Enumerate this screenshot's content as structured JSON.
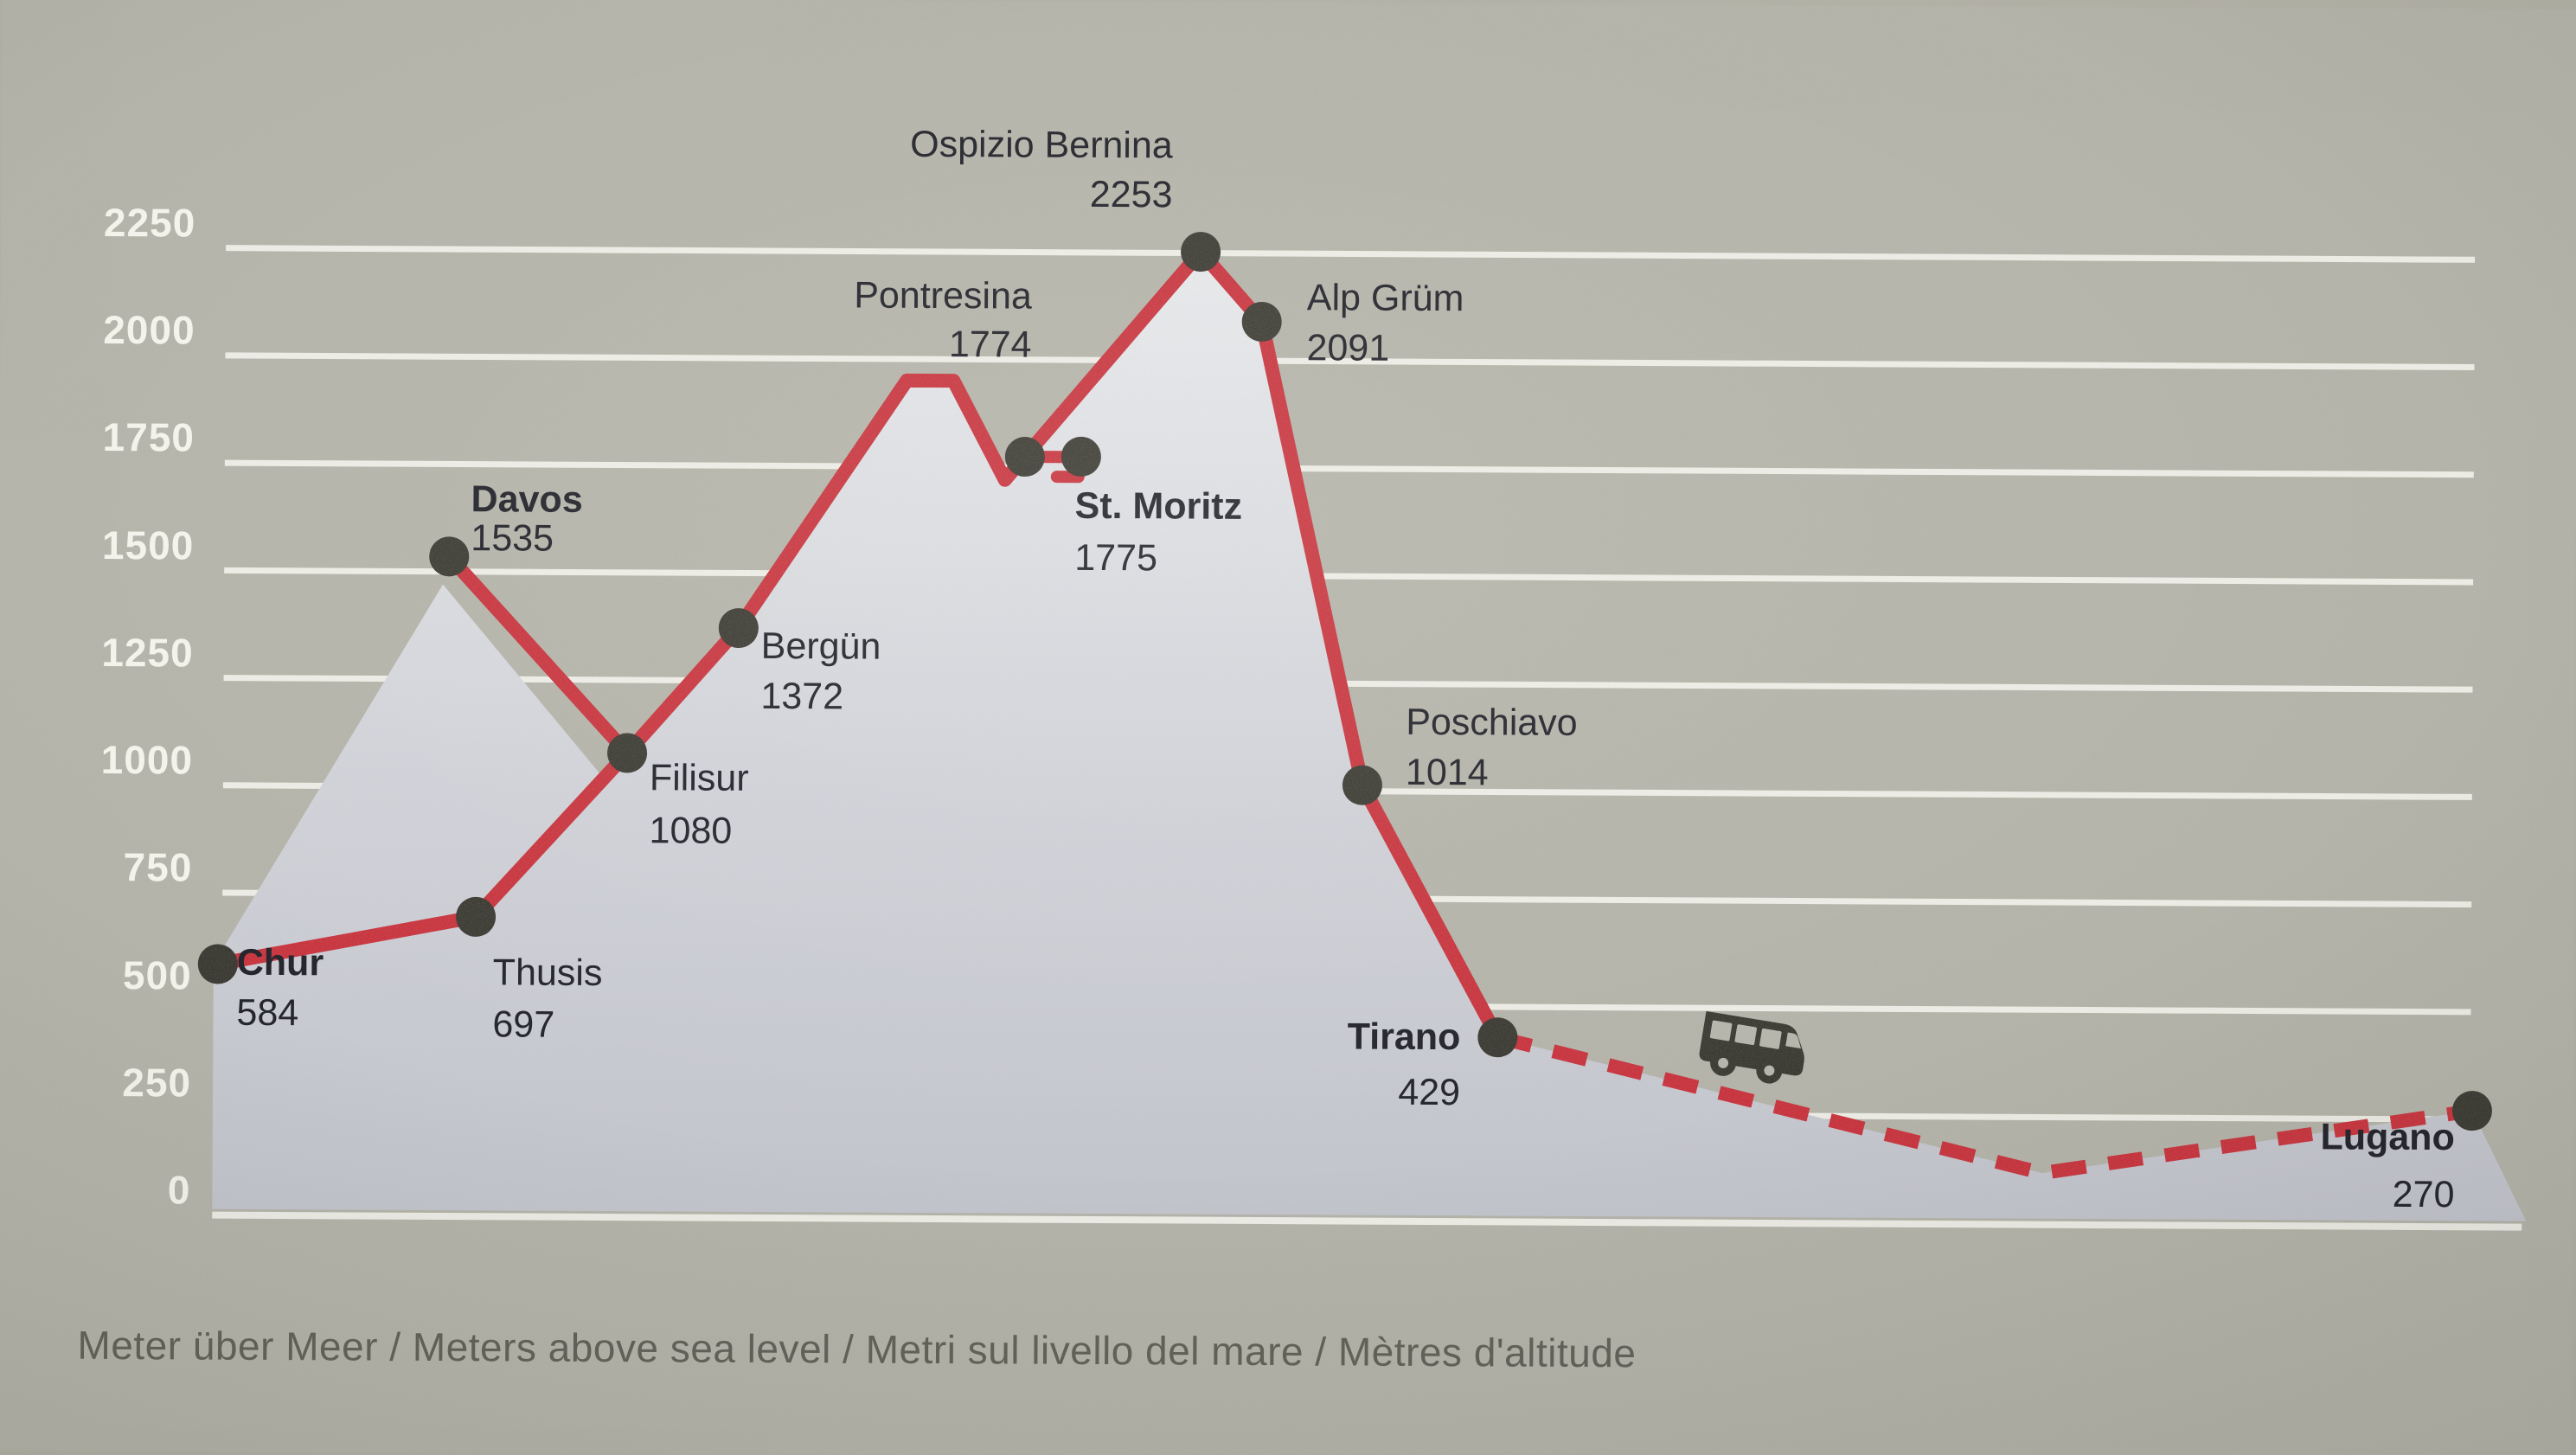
{
  "colors": {
    "background": "#b2b1a6",
    "line_red": "#c9202c",
    "dot_black": "#28271f",
    "grid_white": "#f3f3ec",
    "fill_top": "#ecedf1",
    "fill_bottom": "#c2c4ce",
    "tick_text": "#f3f3ec",
    "station_text": "#26262e",
    "caption_text": "#63635a"
  },
  "icons": {
    "transfer": "bus-icon"
  },
  "chart_data": {
    "type": "line",
    "title": "",
    "ylabel": "Meter über Meer / Meters above sea level / Metri sul livello del mare / Mètres d'altitude",
    "ylim": [
      0,
      2250
    ],
    "y_ticks": [
      0,
      250,
      500,
      750,
      1000,
      1250,
      1500,
      1750,
      2000,
      2250
    ],
    "grid": "horizontal-white-lines",
    "legend": "none",
    "stations": [
      {
        "name": "Chur",
        "elevation": 584,
        "emphasis": true,
        "x": 255
      },
      {
        "name": "Thusis",
        "elevation": 697,
        "emphasis": false,
        "x": 553
      },
      {
        "name": "Davos",
        "elevation": 1535,
        "emphasis": true,
        "x": 520
      },
      {
        "name": "Filisur",
        "elevation": 1080,
        "emphasis": false,
        "x": 727
      },
      {
        "name": "Bergün",
        "elevation": 1372,
        "emphasis": false,
        "x": 855
      },
      {
        "name": "Pontresina",
        "elevation": 1774,
        "emphasis": false,
        "x": 1185
      },
      {
        "name": "St. Moritz",
        "elevation": 1775,
        "emphasis": true,
        "x": 1250
      },
      {
        "name": "Ospizio Bernina",
        "elevation": 2253,
        "emphasis": false,
        "x": 1387
      },
      {
        "name": "Alp Grüm",
        "elevation": 2091,
        "emphasis": false,
        "x": 1458
      },
      {
        "name": "Poschiavo",
        "elevation": 1014,
        "emphasis": false,
        "x": 1577
      },
      {
        "name": "Tirano",
        "elevation": 429,
        "emphasis": true,
        "x": 1735
      },
      {
        "name": "Lugano",
        "elevation": 270,
        "emphasis": true,
        "x": 2862
      }
    ],
    "rail_profile": [
      [
        255,
        584
      ],
      [
        553,
        697
      ],
      [
        727,
        1080
      ],
      [
        855,
        1372
      ],
      [
        1048,
        1950
      ],
      [
        1102,
        1950
      ],
      [
        1162,
        1720
      ],
      [
        1387,
        2253
      ],
      [
        1458,
        2091
      ],
      [
        1577,
        1014
      ],
      [
        1735,
        429
      ]
    ],
    "davos_branch": [
      [
        520,
        1535
      ],
      [
        727,
        1080
      ]
    ],
    "stmoritz_spur": [
      [
        1185,
        1774
      ],
      [
        1247,
        1774
      ],
      [
        1247,
        1728
      ],
      [
        1222,
        1728
      ]
    ],
    "bus_transfer_dashed": [
      [
        1735,
        429
      ],
      [
        2365,
        120
      ],
      [
        2862,
        270
      ]
    ],
    "silhouette": [
      [
        250,
        14
      ],
      [
        250,
        584
      ],
      [
        513,
        1470
      ],
      [
        700,
        1021
      ],
      [
        727,
        1080
      ],
      [
        855,
        1372
      ],
      [
        1048,
        1950
      ],
      [
        1102,
        1950
      ],
      [
        1162,
        1720
      ],
      [
        1387,
        2253
      ],
      [
        1458,
        2091
      ],
      [
        1577,
        1014
      ],
      [
        1735,
        429
      ],
      [
        2365,
        120
      ],
      [
        2862,
        270
      ],
      [
        2925,
        14
      ]
    ]
  }
}
